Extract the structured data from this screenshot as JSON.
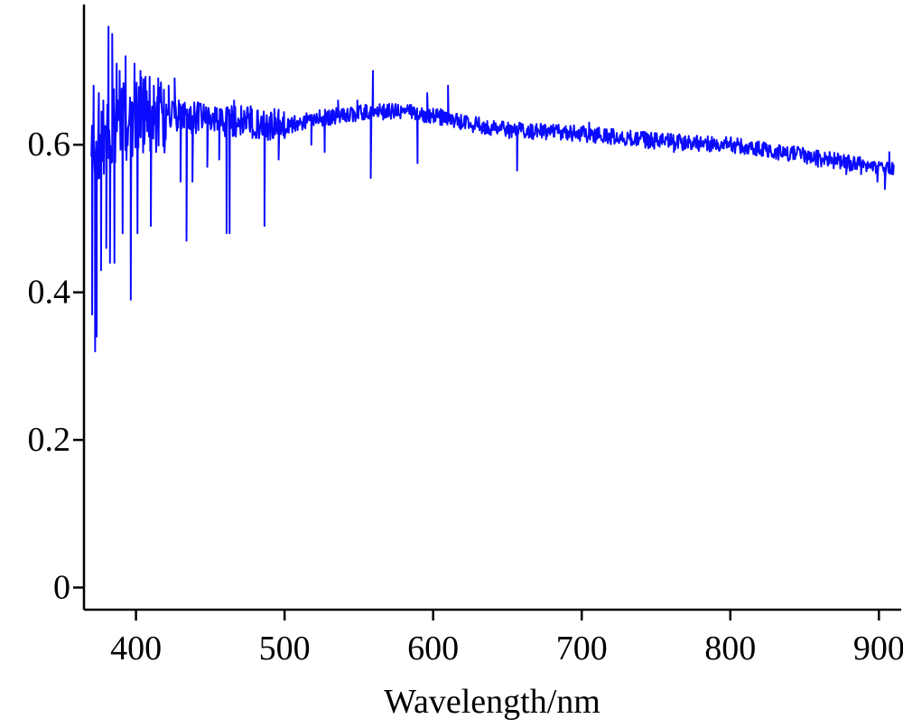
{
  "colors": {
    "series": "#0a0aff",
    "axis": "#000000",
    "background": "#ffffff"
  },
  "chart_data": {
    "type": "line",
    "title": "",
    "xlabel": "Wavelength/nm",
    "ylabel": "",
    "xlim": [
      365,
      915
    ],
    "ylim": [
      -0.03,
      0.79
    ],
    "grid": false,
    "legend": "none",
    "x_ticks": [
      400,
      500,
      600,
      700,
      800,
      900
    ],
    "x_tick_labels": [
      "400",
      "500",
      "600",
      "700",
      "800",
      "900"
    ],
    "y_ticks": [
      0,
      0.2,
      0.4,
      0.6
    ],
    "y_tick_labels": [
      "0",
      "0.2",
      "0.4",
      "0.6"
    ],
    "series": [
      {
        "color": "#0a0aff",
        "baseline": [
          [
            370,
            0.58
          ],
          [
            380,
            0.61
          ],
          [
            390,
            0.63
          ],
          [
            400,
            0.64
          ],
          [
            420,
            0.64
          ],
          [
            450,
            0.635
          ],
          [
            480,
            0.63
          ],
          [
            500,
            0.625
          ],
          [
            520,
            0.635
          ],
          [
            540,
            0.64
          ],
          [
            560,
            0.645
          ],
          [
            580,
            0.645
          ],
          [
            600,
            0.64
          ],
          [
            620,
            0.63
          ],
          [
            650,
            0.62
          ],
          [
            700,
            0.615
          ],
          [
            750,
            0.605
          ],
          [
            800,
            0.6
          ],
          [
            850,
            0.585
          ],
          [
            880,
            0.575
          ],
          [
            910,
            0.565
          ]
        ],
        "features": [
          [
            370.5,
            0.37
          ],
          [
            371.5,
            0.68
          ],
          [
            372.5,
            0.32
          ],
          [
            373.5,
            0.34
          ],
          [
            375,
            0.67
          ],
          [
            376.5,
            0.43
          ],
          [
            378,
            0.66
          ],
          [
            380,
            0.46
          ],
          [
            381.5,
            0.76
          ],
          [
            382.5,
            0.44
          ],
          [
            384,
            0.75
          ],
          [
            385.5,
            0.44
          ],
          [
            387,
            0.71
          ],
          [
            389,
            0.7
          ],
          [
            391,
            0.48
          ],
          [
            393,
            0.72
          ],
          [
            396.5,
            0.39
          ],
          [
            399,
            0.71
          ],
          [
            401,
            0.48
          ],
          [
            403,
            0.7
          ],
          [
            405,
            0.67
          ],
          [
            410,
            0.49
          ],
          [
            412,
            0.68
          ],
          [
            415,
            0.69
          ],
          [
            422,
            0.68
          ],
          [
            426,
            0.69
          ],
          [
            430,
            0.55
          ],
          [
            434,
            0.47
          ],
          [
            438,
            0.55
          ],
          [
            448,
            0.57
          ],
          [
            456,
            0.58
          ],
          [
            461,
            0.48
          ],
          [
            463,
            0.48
          ],
          [
            466,
            0.66
          ],
          [
            486.5,
            0.49
          ],
          [
            496,
            0.58
          ],
          [
            518,
            0.6
          ],
          [
            527,
            0.59
          ],
          [
            536,
            0.66
          ],
          [
            549,
            0.66
          ],
          [
            558,
            0.555
          ],
          [
            559.5,
            0.7
          ],
          [
            589.5,
            0.575
          ],
          [
            596,
            0.67
          ],
          [
            610,
            0.68
          ],
          [
            656.5,
            0.565
          ],
          [
            658,
            0.63
          ],
          [
            705,
            0.63
          ],
          [
            762,
            0.59
          ],
          [
            808,
            0.59
          ],
          [
            859,
            0.57
          ],
          [
            878,
            0.56
          ],
          [
            888,
            0.56
          ],
          [
            899,
            0.55
          ],
          [
            904,
            0.54
          ],
          [
            907,
            0.59
          ],
          [
            909,
            0.56
          ]
        ]
      }
    ]
  }
}
